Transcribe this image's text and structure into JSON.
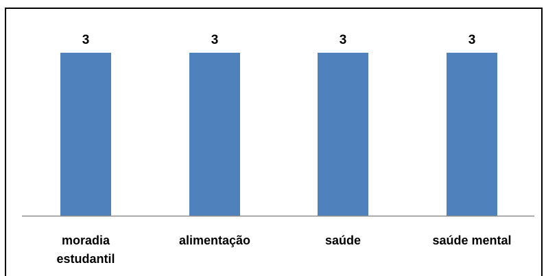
{
  "chart_data": {
    "type": "bar",
    "categories": [
      "moradia estudantil",
      "alimentação",
      "saúde",
      "saúde mental"
    ],
    "category_label_lines": [
      [
        "moradia",
        "estudantil"
      ],
      [
        "alimentação"
      ],
      [
        "saúde"
      ],
      [
        "saúde mental"
      ]
    ],
    "values": [
      3,
      3,
      3,
      3
    ],
    "data_labels": [
      "3",
      "3",
      "3",
      "3"
    ],
    "title": "",
    "xlabel": "",
    "ylabel": "",
    "ylim": [
      0,
      3
    ],
    "grid": false,
    "legend": "none",
    "bar_color": "#4F81BD",
    "axis_color": "#8C8C8C"
  }
}
